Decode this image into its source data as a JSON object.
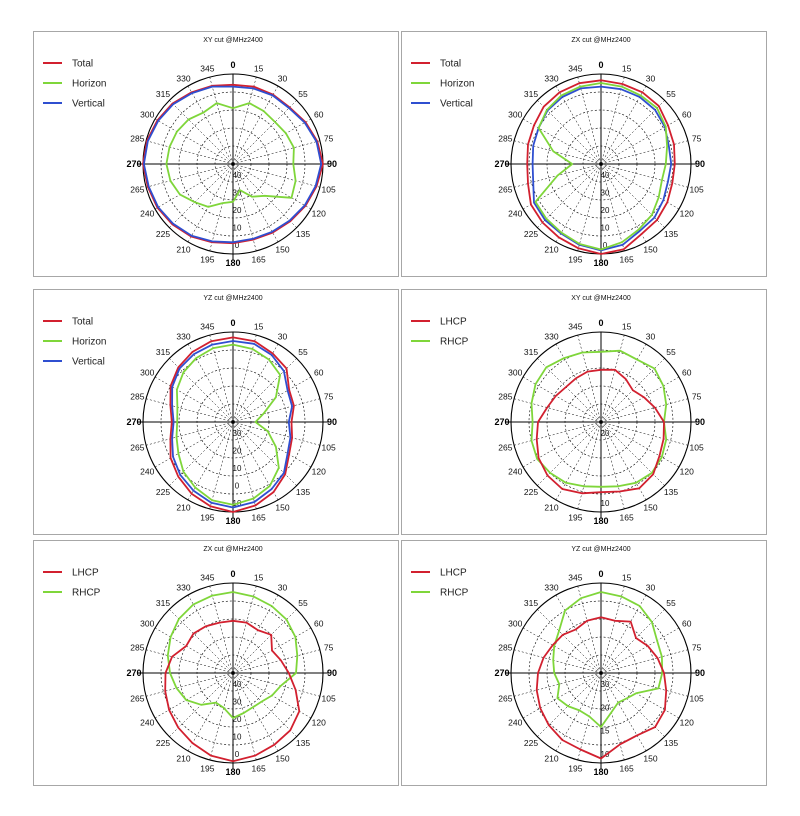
{
  "colors": {
    "red": "#d2202f",
    "green": "#7fd63a",
    "blue": "#2f4fd0",
    "grid": "#000000"
  },
  "angle_labels": [
    "0",
    "15",
    "30",
    "55",
    "60",
    "75",
    "90",
    "105",
    "120",
    "135",
    "150",
    "165",
    "180",
    "195",
    "210",
    "225",
    "240",
    "265",
    "270",
    "285",
    "300",
    "315",
    "330",
    "345"
  ],
  "chart_data": [
    {
      "type": "polar-line",
      "title": "XY cut @MHz2400",
      "legend": [
        "Total",
        "Horizon",
        "Vertical"
      ],
      "radial_labels": [
        "40",
        "30",
        "20",
        "10",
        "0"
      ],
      "series": [
        {
          "name": "Total",
          "color": "red",
          "r": [
            0.88,
            0.89,
            0.89,
            0.89,
            0.93,
            0.97,
            1.0,
            0.96,
            0.93,
            0.9,
            0.88,
            0.87,
            0.88,
            0.9,
            0.93,
            0.95,
            0.97,
            0.98,
            1.0,
            0.99,
            0.97,
            0.95,
            0.92,
            0.9
          ]
        },
        {
          "name": "Vertical",
          "color": "blue",
          "r": [
            0.86,
            0.87,
            0.88,
            0.88,
            0.92,
            0.96,
            0.98,
            0.95,
            0.92,
            0.89,
            0.87,
            0.86,
            0.87,
            0.89,
            0.92,
            0.94,
            0.96,
            0.97,
            0.99,
            0.98,
            0.96,
            0.94,
            0.91,
            0.89
          ]
        },
        {
          "name": "Horizon",
          "color": "green",
          "r": [
            0.62,
            0.7,
            0.68,
            0.66,
            0.68,
            0.7,
            0.67,
            0.72,
            0.75,
            0.5,
            0.42,
            0.3,
            0.42,
            0.45,
            0.55,
            0.6,
            0.68,
            0.72,
            0.74,
            0.73,
            0.72,
            0.7,
            0.66,
            0.7
          ]
        }
      ]
    },
    {
      "type": "polar-line",
      "title": "ZX cut @MHz2400",
      "legend": [
        "Total",
        "Horizon",
        "Vertical"
      ],
      "radial_labels": [
        "40",
        "30",
        "20",
        "10",
        "0"
      ],
      "series": [
        {
          "name": "Total",
          "color": "red",
          "r": [
            0.93,
            0.92,
            0.92,
            0.91,
            0.86,
            0.84,
            0.82,
            0.82,
            0.85,
            0.88,
            0.9,
            0.98,
            1.0,
            0.97,
            0.94,
            0.92,
            0.9,
            0.84,
            0.82,
            0.84,
            0.86,
            0.9,
            0.92,
            0.93
          ]
        },
        {
          "name": "Vertical",
          "color": "blue",
          "r": [
            0.86,
            0.86,
            0.86,
            0.85,
            0.82,
            0.78,
            0.78,
            0.77,
            0.8,
            0.84,
            0.86,
            0.93,
            0.96,
            0.93,
            0.89,
            0.88,
            0.86,
            0.78,
            0.76,
            0.78,
            0.8,
            0.84,
            0.86,
            0.87
          ]
        },
        {
          "name": "Horizon",
          "color": "green",
          "r": [
            0.9,
            0.89,
            0.88,
            0.88,
            0.83,
            0.76,
            0.72,
            0.7,
            0.74,
            0.8,
            0.84,
            0.9,
            0.95,
            0.92,
            0.88,
            0.86,
            0.84,
            0.5,
            0.32,
            0.55,
            0.8,
            0.85,
            0.88,
            0.89
          ]
        }
      ]
    },
    {
      "type": "polar-line",
      "title": "YZ cut @MHz2400",
      "legend": [
        "Total",
        "Horizon",
        "Vertical"
      ],
      "radial_labels": [
        "30",
        "20",
        "10",
        "0",
        "10"
      ],
      "series": [
        {
          "name": "Total",
          "color": "red",
          "r": [
            0.94,
            0.93,
            0.88,
            0.84,
            0.72,
            0.7,
            0.65,
            0.68,
            0.72,
            0.82,
            0.9,
            0.96,
            1.0,
            0.97,
            0.92,
            0.86,
            0.8,
            0.72,
            0.68,
            0.72,
            0.8,
            0.86,
            0.9,
            0.93
          ]
        },
        {
          "name": "Vertical",
          "color": "blue",
          "r": [
            0.9,
            0.9,
            0.86,
            0.8,
            0.7,
            0.68,
            0.62,
            0.66,
            0.7,
            0.8,
            0.86,
            0.92,
            0.95,
            0.93,
            0.88,
            0.83,
            0.77,
            0.7,
            0.66,
            0.7,
            0.78,
            0.84,
            0.87,
            0.89
          ]
        },
        {
          "name": "Horizon",
          "color": "green",
          "r": [
            0.86,
            0.84,
            0.8,
            0.74,
            0.55,
            0.35,
            0.25,
            0.4,
            0.55,
            0.72,
            0.82,
            0.88,
            0.92,
            0.9,
            0.84,
            0.78,
            0.7,
            0.65,
            0.62,
            0.64,
            0.72,
            0.78,
            0.82,
            0.85
          ]
        }
      ]
    },
    {
      "type": "polar-line",
      "title": "XY cut @MHz2400",
      "legend": [
        "LHCP",
        "RHCP"
      ],
      "radial_labels": [
        "20",
        "10"
      ],
      "series": [
        {
          "name": "RHCP",
          "color": "green",
          "r": [
            0.78,
            0.82,
            0.8,
            0.84,
            0.8,
            0.75,
            0.7,
            0.75,
            0.78,
            0.8,
            0.78,
            0.74,
            0.72,
            0.74,
            0.78,
            0.8,
            0.82,
            0.8,
            0.76,
            0.8,
            0.84,
            0.86,
            0.82,
            0.8
          ]
        },
        {
          "name": "LHCP",
          "color": "red",
          "r": [
            0.58,
            0.6,
            0.55,
            0.5,
            0.55,
            0.62,
            0.7,
            0.72,
            0.75,
            0.82,
            0.85,
            0.8,
            0.78,
            0.82,
            0.86,
            0.84,
            0.8,
            0.74,
            0.7,
            0.62,
            0.58,
            0.55,
            0.56,
            0.58
          ]
        }
      ]
    },
    {
      "type": "polar-line",
      "title": "ZX cut @MHz2400",
      "legend": [
        "LHCP",
        "RHCP"
      ],
      "radial_labels": [
        "40",
        "30",
        "20",
        "10",
        "0"
      ],
      "series": [
        {
          "name": "RHCP",
          "color": "green",
          "r": [
            0.9,
            0.88,
            0.86,
            0.84,
            0.8,
            0.74,
            0.7,
            0.55,
            0.5,
            0.45,
            0.44,
            0.46,
            0.5,
            0.4,
            0.38,
            0.5,
            0.6,
            0.65,
            0.7,
            0.75,
            0.8,
            0.85,
            0.88,
            0.89
          ]
        },
        {
          "name": "LHCP",
          "color": "red",
          "r": [
            0.58,
            0.58,
            0.55,
            0.6,
            0.5,
            0.55,
            0.62,
            0.72,
            0.85,
            0.9,
            0.92,
            0.95,
            0.98,
            0.95,
            0.9,
            0.86,
            0.82,
            0.78,
            0.75,
            0.7,
            0.6,
            0.62,
            0.6,
            0.58
          ]
        }
      ]
    },
    {
      "type": "polar-line",
      "title": "YZ cut @MHz2400",
      "legend": [
        "LHCP",
        "RHCP"
      ],
      "radial_labels": [
        "30",
        "20",
        "15",
        "10"
      ],
      "series": [
        {
          "name": "RHCP",
          "color": "green",
          "r": [
            0.9,
            0.88,
            0.86,
            0.8,
            0.72,
            0.7,
            0.68,
            0.66,
            0.45,
            0.4,
            0.38,
            0.45,
            0.6,
            0.5,
            0.48,
            0.52,
            0.56,
            0.48,
            0.52,
            0.55,
            0.6,
            0.66,
            0.8,
            0.86
          ]
        },
        {
          "name": "LHCP",
          "color": "red",
          "r": [
            0.62,
            0.6,
            0.66,
            0.55,
            0.6,
            0.65,
            0.7,
            0.75,
            0.82,
            0.85,
            0.8,
            0.82,
            0.95,
            0.88,
            0.86,
            0.82,
            0.78,
            0.74,
            0.7,
            0.66,
            0.62,
            0.6,
            0.56,
            0.6
          ]
        }
      ]
    }
  ]
}
